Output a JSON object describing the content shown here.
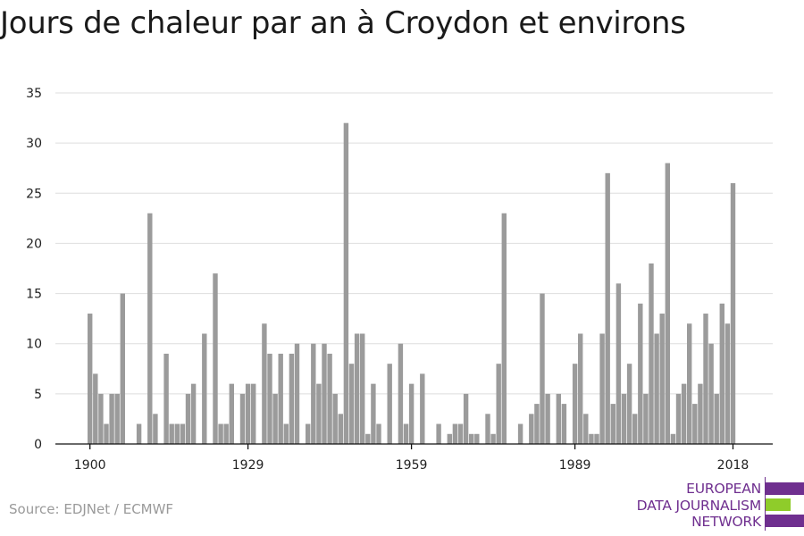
{
  "chart_data": {
    "type": "bar",
    "title": "Jours de chaleur par an à Croydon et environs",
    "xlabel": "",
    "ylabel": "",
    "ylim": [
      0,
      35
    ],
    "yticks": [
      0,
      5,
      10,
      15,
      20,
      25,
      30,
      35
    ],
    "xticks": [
      1900,
      1929,
      1959,
      1989,
      2018
    ],
    "grid": true,
    "legend": "none",
    "bar_color": "#9b9b9b",
    "x": [
      1900,
      1901,
      1902,
      1903,
      1904,
      1905,
      1906,
      1907,
      1908,
      1909,
      1910,
      1911,
      1912,
      1913,
      1914,
      1915,
      1916,
      1917,
      1918,
      1919,
      1920,
      1921,
      1922,
      1923,
      1924,
      1925,
      1926,
      1927,
      1928,
      1929,
      1930,
      1931,
      1932,
      1933,
      1934,
      1935,
      1936,
      1937,
      1938,
      1939,
      1940,
      1941,
      1942,
      1943,
      1944,
      1945,
      1946,
      1947,
      1948,
      1949,
      1950,
      1951,
      1952,
      1953,
      1954,
      1955,
      1956,
      1957,
      1958,
      1959,
      1960,
      1961,
      1962,
      1963,
      1964,
      1965,
      1966,
      1967,
      1968,
      1969,
      1970,
      1971,
      1972,
      1973,
      1974,
      1975,
      1976,
      1977,
      1978,
      1979,
      1980,
      1981,
      1982,
      1983,
      1984,
      1985,
      1986,
      1987,
      1988,
      1989,
      1990,
      1991,
      1992,
      1993,
      1994,
      1995,
      1996,
      1997,
      1998,
      1999,
      2000,
      2001,
      2002,
      2003,
      2004,
      2005,
      2006,
      2007,
      2008,
      2009,
      2010,
      2011,
      2012,
      2013,
      2014,
      2015,
      2016,
      2017,
      2018
    ],
    "values": [
      13,
      7,
      5,
      2,
      5,
      5,
      15,
      0,
      0,
      2,
      0,
      23,
      3,
      0,
      9,
      2,
      2,
      2,
      5,
      6,
      0,
      11,
      0,
      17,
      2,
      2,
      6,
      0,
      5,
      6,
      6,
      0,
      12,
      9,
      5,
      9,
      2,
      9,
      10,
      0,
      2,
      10,
      6,
      10,
      9,
      5,
      3,
      32,
      8,
      11,
      11,
      1,
      6,
      2,
      0,
      8,
      0,
      10,
      2,
      6,
      0,
      7,
      0,
      0,
      2,
      0,
      1,
      2,
      2,
      5,
      1,
      1,
      0,
      3,
      1,
      8,
      23,
      0,
      0,
      2,
      0,
      3,
      4,
      15,
      5,
      0,
      5,
      4,
      0,
      8,
      11,
      3,
      1,
      1,
      11,
      27,
      4,
      16,
      5,
      8,
      3,
      14,
      5,
      18,
      11,
      13,
      28,
      1,
      5,
      6,
      12,
      4,
      6,
      13,
      10,
      5,
      14,
      12,
      26
    ]
  },
  "source": "Source: EDJNet / ECMWF",
  "logo": {
    "line1": "EUROPEAN",
    "line2": "DATA JOURNALISM",
    "line3": "NETWORK",
    "purple": "#6f2f8f",
    "green": "#8fcc2a"
  }
}
